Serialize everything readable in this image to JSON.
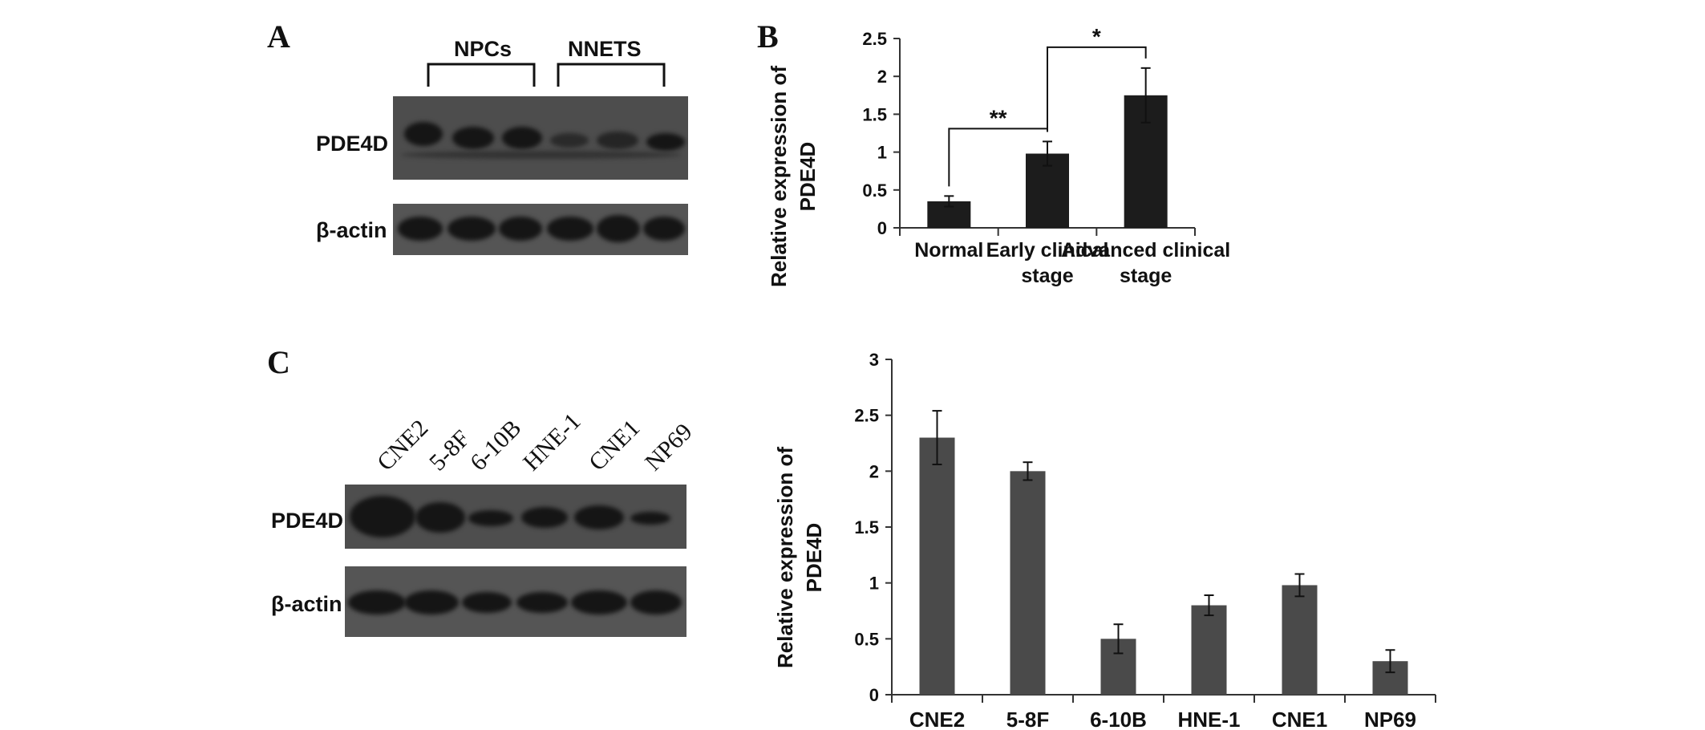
{
  "panels": {
    "a": {
      "letter": "A",
      "groups": [
        "NPCs",
        "NNETS"
      ],
      "rows": [
        "PDE4D",
        "β-actin"
      ]
    },
    "b": {
      "letter": "B"
    },
    "c": {
      "letter": "C",
      "lanes": [
        "CNE2",
        "5-8F",
        "6-10B",
        "HNE-1",
        "CNE1",
        "NP69"
      ],
      "rows": [
        "PDE4D",
        "β-actin"
      ]
    }
  },
  "chart_data": [
    {
      "panel": "B",
      "type": "bar",
      "categories": [
        [
          "Normal"
        ],
        [
          "Early clinical",
          "stage"
        ],
        [
          "Advanced clinical",
          "stage"
        ]
      ],
      "values": [
        0.35,
        0.98,
        1.75
      ],
      "errors": [
        0.07,
        0.16,
        0.36
      ],
      "ylabel": [
        "Relative expression of",
        "PDE4D"
      ],
      "ylim": [
        0,
        2.5
      ],
      "yticks": [
        "0",
        "0.5",
        "1",
        "1.5",
        "2",
        "2.5"
      ],
      "bar_color": "#1c1c1c",
      "significance": [
        {
          "from": 0,
          "to": 1,
          "label": "**"
        },
        {
          "from": 1,
          "to": 2,
          "label": "*"
        }
      ]
    },
    {
      "panel": "C",
      "type": "bar",
      "categories": [
        [
          "CNE2"
        ],
        [
          "5-8F"
        ],
        [
          "6-10B"
        ],
        [
          "HNE-1"
        ],
        [
          "CNE1"
        ],
        [
          "NP69"
        ]
      ],
      "values": [
        2.3,
        2.0,
        0.5,
        0.8,
        0.98,
        0.3
      ],
      "errors": [
        0.24,
        0.08,
        0.13,
        0.09,
        0.1,
        0.1
      ],
      "ylabel": [
        "Relative expression of",
        "PDE4D"
      ],
      "ylim": [
        0,
        3
      ],
      "yticks": [
        "0",
        "0.5",
        "1",
        "1.5",
        "2",
        "2.5",
        "3"
      ],
      "bar_color": "#4a4a4a"
    }
  ]
}
